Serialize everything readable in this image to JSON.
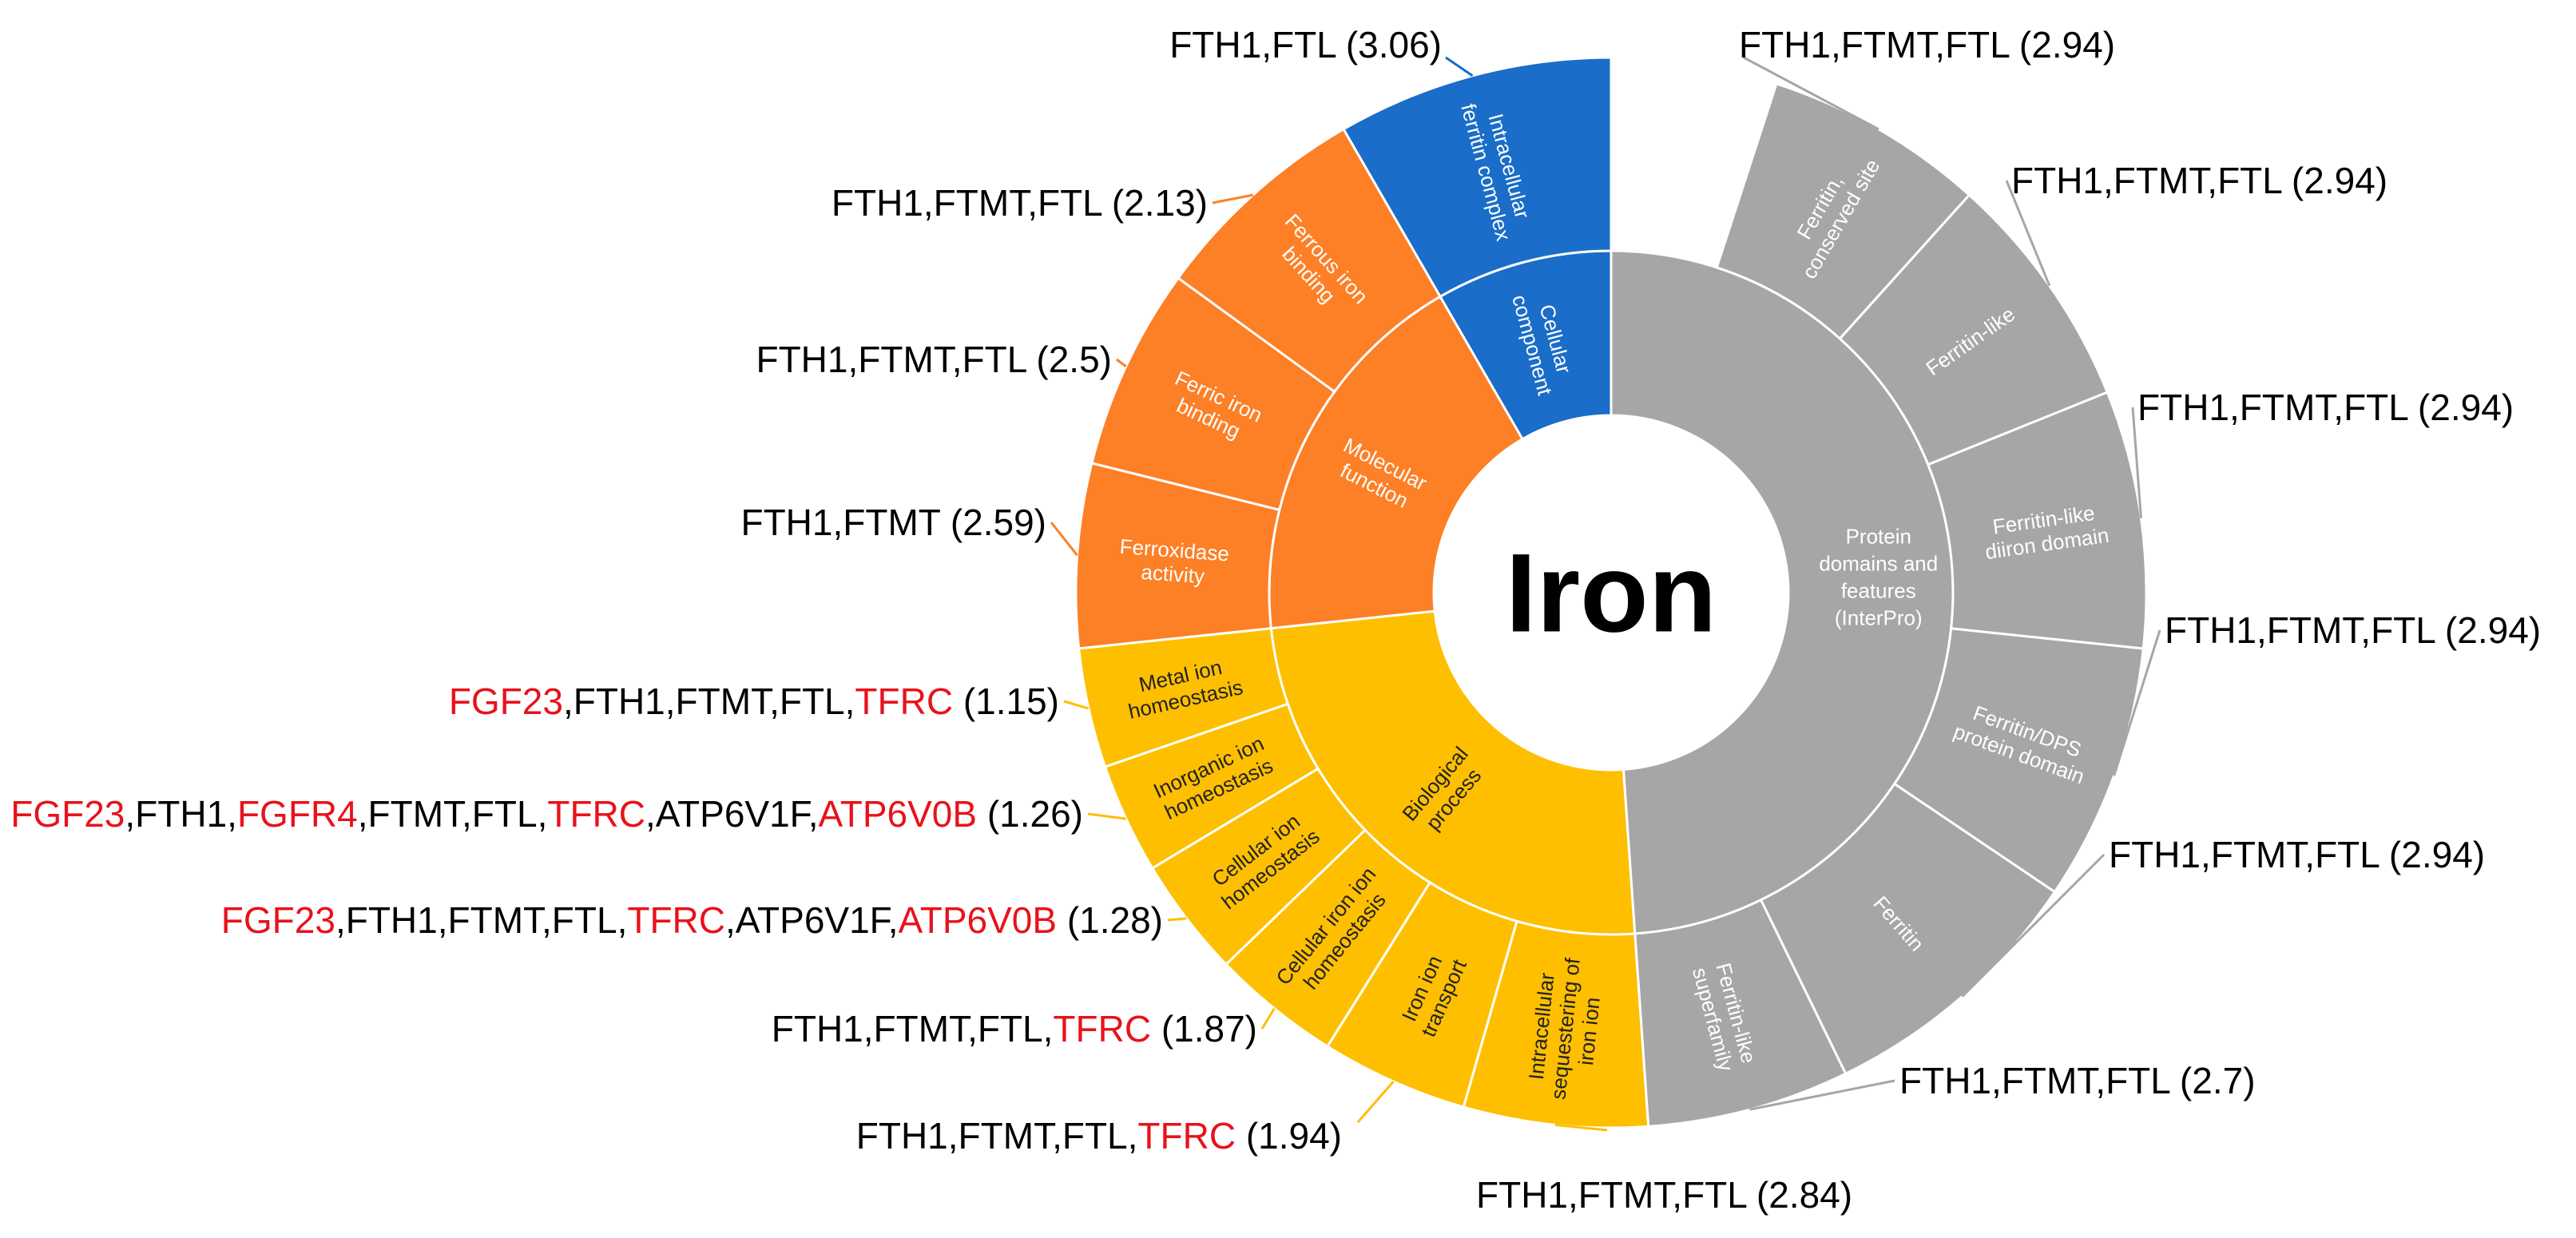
{
  "chart_data": {
    "type": "sunburst",
    "center_label": "Iron",
    "colors": {
      "cellular": "#1a6dc8",
      "molecular": "#fd7f26",
      "biological": "#fdbf00",
      "protein": "#a6a6a6",
      "highlight": "#e8121a",
      "text": "#000000"
    },
    "inner": [
      {
        "name": "Cellular component",
        "color_key": "cellular",
        "children": [
          2
        ]
      },
      {
        "name": "Molecular function",
        "color_key": "molecular",
        "children": [
          3,
          4,
          5
        ]
      },
      {
        "name": "Biological process",
        "color_key": "biological",
        "children": [
          6,
          7,
          8,
          9,
          10,
          11
        ]
      },
      {
        "name": "Protein domains and features (InterPro)",
        "color_key": "protein",
        "children": [
          7,
          7,
          6,
          6,
          6,
          6,
          6
        ]
      }
    ],
    "outer": [
      {
        "name": "Intracellular ferritin complex",
        "score": "3.06",
        "genes": [
          {
            "t": "FTH1"
          },
          {
            "t": "FTL"
          }
        ]
      },
      {
        "name": "Ferrous iron binding",
        "score": "2.13",
        "genes": [
          {
            "t": "FTH1"
          },
          {
            "t": "FTMT"
          },
          {
            "t": "FTL"
          }
        ]
      },
      {
        "name": "Ferric iron binding",
        "score": "2.5",
        "genes": [
          {
            "t": "FTH1"
          },
          {
            "t": "FTMT"
          },
          {
            "t": "FTL"
          }
        ]
      },
      {
        "name": "Ferroxidase activity",
        "score": "2.59",
        "genes": [
          {
            "t": "FTH1"
          },
          {
            "t": "FTMT"
          }
        ]
      },
      {
        "name": "Metal ion homeostasis",
        "score": "1.15",
        "genes": [
          {
            "t": "FGF23",
            "hl": true
          },
          {
            "t": "FTH1"
          },
          {
            "t": "FTMT"
          },
          {
            "t": "FTL"
          },
          {
            "t": "TFRC",
            "hl": true
          }
        ]
      },
      {
        "name": "Inorganic ion homeostasis",
        "score": "1.26",
        "genes": [
          {
            "t": "FGF23",
            "hl": true
          },
          {
            "t": "FTH1"
          },
          {
            "t": "FGFR4",
            "hl": true
          },
          {
            "t": "FTMT"
          },
          {
            "t": "FTL"
          },
          {
            "t": "TFRC",
            "hl": true
          },
          {
            "t": "ATP6V1F"
          },
          {
            "t": "ATP6V0B",
            "hl": true
          }
        ]
      },
      {
        "name": "Cellular ion homeostasis",
        "score": "1.28",
        "genes": [
          {
            "t": "FGF23",
            "hl": true
          },
          {
            "t": "FTH1"
          },
          {
            "t": "FTMT"
          },
          {
            "t": "FTL"
          },
          {
            "t": "TFRC",
            "hl": true
          },
          {
            "t": "ATP6V1F"
          },
          {
            "t": "ATP6V0B",
            "hl": true
          }
        ]
      },
      {
        "name": "Cellular iron ion homeostasis",
        "score": "1.87",
        "genes": [
          {
            "t": "FTH1"
          },
          {
            "t": "FTMT"
          },
          {
            "t": "FTL"
          },
          {
            "t": "TFRC",
            "hl": true
          }
        ]
      },
      {
        "name": "Iron ion transport",
        "score": "1.94",
        "genes": [
          {
            "t": "FTH1"
          },
          {
            "t": "FTMT"
          },
          {
            "t": "FTL"
          },
          {
            "t": "TFRC",
            "hl": true
          }
        ]
      },
      {
        "name": "Intracellular sequestering of iron ion",
        "score": "2.84",
        "genes": [
          {
            "t": "FTH1"
          },
          {
            "t": "FTMT"
          },
          {
            "t": "FTL"
          }
        ]
      },
      {
        "name": "Ferritin-like superfamily",
        "score": "2.7",
        "genes": [
          {
            "t": "FTH1"
          },
          {
            "t": "FTMT"
          },
          {
            "t": "FTL"
          }
        ]
      },
      {
        "name": "Ferritin",
        "score": "2.94",
        "genes": [
          {
            "t": "FTH1"
          },
          {
            "t": "FTMT"
          },
          {
            "t": "FTL"
          }
        ]
      },
      {
        "name": "Ferritin/DPS protein domain",
        "score": "2.94",
        "genes": [
          {
            "t": "FTH1"
          },
          {
            "t": "FTMT"
          },
          {
            "t": "FTL"
          }
        ]
      },
      {
        "name": "Ferritin-like diiron domain",
        "score": "2.94",
        "genes": [
          {
            "t": "FTH1"
          },
          {
            "t": "FTMT"
          },
          {
            "t": "FTL"
          }
        ]
      },
      {
        "name": "Ferritin-like",
        "score": "2.94",
        "genes": [
          {
            "t": "FTH1"
          },
          {
            "t": "FTMT"
          },
          {
            "t": "FTL"
          }
        ]
      },
      {
        "name": "Ferritin, conserved site",
        "score": "2.94",
        "genes": [
          {
            "t": "FTH1"
          },
          {
            "t": "FTMT"
          },
          {
            "t": "FTL"
          }
        ]
      }
    ]
  }
}
